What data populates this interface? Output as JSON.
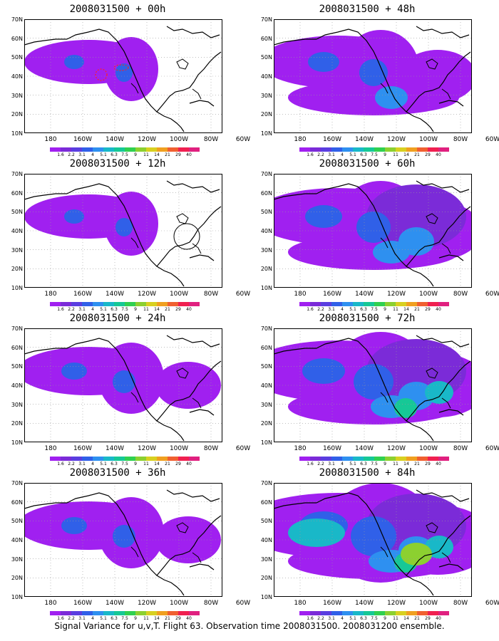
{
  "caption": "Signal Variance for u,v,T. Flight 63. Observation time 2008031500. 2008031200 ensemble.",
  "lat_labels": [
    "70N",
    "60N",
    "50N",
    "40N",
    "30N",
    "20N",
    "10N"
  ],
  "lon_labels": [
    "180",
    "160W",
    "140W",
    "120W",
    "100W",
    "80W",
    "60W"
  ],
  "colorbar": {
    "labels": [
      "1.6",
      "2.2",
      "3.1",
      "4",
      "5.1",
      "6.3",
      "7.5",
      "9",
      "11",
      "14",
      "21",
      "29",
      "40"
    ],
    "colors": [
      "#a020f0",
      "#7b2bd8",
      "#5a3ee0",
      "#3060e8",
      "#2e90f0",
      "#19b8c8",
      "#16c896",
      "#30d050",
      "#8cd030",
      "#d8d020",
      "#f0a020",
      "#f06030",
      "#f02050",
      "#e0207f"
    ]
  },
  "panels": [
    {
      "title": "2008031500 + 00h",
      "intensity": 1
    },
    {
      "title": "2008031500 + 48h",
      "intensity": 3
    },
    {
      "title": "2008031500 + 12h",
      "intensity": 1
    },
    {
      "title": "2008031500 + 60h",
      "intensity": 4
    },
    {
      "title": "2008031500 + 24h",
      "intensity": 2
    },
    {
      "title": "2008031500 + 72h",
      "intensity": 5
    },
    {
      "title": "2008031500 + 36h",
      "intensity": 2
    },
    {
      "title": "2008031500 + 84h",
      "intensity": 6
    }
  ]
}
